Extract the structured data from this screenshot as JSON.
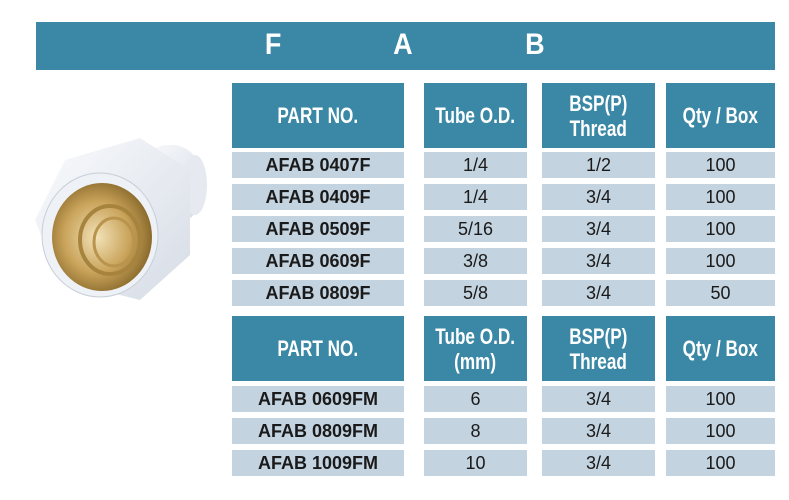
{
  "title_letters": [
    "F",
    "A",
    "B"
  ],
  "colors": {
    "header": "#3a88a6",
    "row": "#c3d3e0"
  },
  "image": "white push-fit female adaptor with brass thread",
  "table1": {
    "headers": [
      "PART NO.",
      "Tube O.D.",
      "BSP(P)\nThread",
      "Qty / Box"
    ],
    "rows": [
      [
        "AFAB 0407F",
        "1/4",
        "1/2",
        "100"
      ],
      [
        "AFAB 0409F",
        "1/4",
        "3/4",
        "100"
      ],
      [
        "AFAB 0509F",
        "5/16",
        "3/4",
        "100"
      ],
      [
        "AFAB 0609F",
        "3/8",
        "3/4",
        "100"
      ],
      [
        "AFAB 0809F",
        "5/8",
        "3/4",
        "50"
      ]
    ]
  },
  "table2": {
    "headers": [
      "PART NO.",
      "Tube O.D.\n(mm)",
      "BSP(P)\nThread",
      "Qty / Box"
    ],
    "rows": [
      [
        "AFAB 0609FM",
        "6",
        "3/4",
        "100"
      ],
      [
        "AFAB 0809FM",
        "8",
        "3/4",
        "100"
      ],
      [
        "AFAB 1009FM",
        "10",
        "3/4",
        "100"
      ]
    ]
  }
}
